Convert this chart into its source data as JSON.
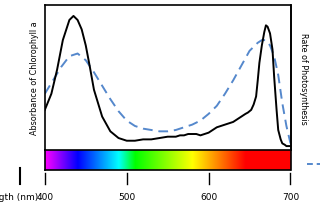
{
  "wavelength_min": 400,
  "wavelength_max": 700,
  "xlabel": "Wavelength (nm):",
  "ylabel_left": "Absorbance of Chlorophyll a",
  "ylabel_right": "Rate of Photosynthesis",
  "chlorophyll_x": [
    400,
    408,
    415,
    422,
    430,
    435,
    440,
    445,
    450,
    455,
    460,
    470,
    480,
    490,
    500,
    510,
    520,
    530,
    540,
    550,
    560,
    565,
    570,
    575,
    580,
    585,
    590,
    595,
    600,
    605,
    610,
    615,
    620,
    625,
    630,
    635,
    640,
    645,
    648,
    650,
    652,
    655,
    658,
    660,
    662,
    665,
    668,
    670,
    672,
    675,
    678,
    680,
    683,
    685,
    688,
    690,
    693,
    695,
    698,
    700
  ],
  "chlorophyll_y": [
    0.3,
    0.42,
    0.6,
    0.82,
    0.97,
    1.0,
    0.97,
    0.9,
    0.78,
    0.62,
    0.45,
    0.25,
    0.14,
    0.09,
    0.07,
    0.07,
    0.08,
    0.08,
    0.09,
    0.1,
    0.1,
    0.11,
    0.11,
    0.12,
    0.12,
    0.12,
    0.11,
    0.12,
    0.13,
    0.15,
    0.17,
    0.18,
    0.19,
    0.2,
    0.21,
    0.23,
    0.25,
    0.27,
    0.28,
    0.29,
    0.3,
    0.34,
    0.4,
    0.52,
    0.65,
    0.78,
    0.88,
    0.93,
    0.92,
    0.87,
    0.75,
    0.55,
    0.3,
    0.15,
    0.08,
    0.05,
    0.04,
    0.03,
    0.03,
    0.03
  ],
  "photosynthesis_x": [
    400,
    410,
    420,
    430,
    440,
    450,
    460,
    470,
    480,
    490,
    500,
    510,
    520,
    530,
    540,
    550,
    560,
    570,
    580,
    590,
    600,
    610,
    620,
    630,
    640,
    650,
    660,
    665,
    670,
    675,
    680,
    685,
    690,
    695,
    700
  ],
  "photosynthesis_y": [
    0.42,
    0.52,
    0.62,
    0.7,
    0.72,
    0.67,
    0.58,
    0.48,
    0.38,
    0.29,
    0.22,
    0.18,
    0.16,
    0.15,
    0.14,
    0.14,
    0.15,
    0.17,
    0.19,
    0.22,
    0.27,
    0.33,
    0.42,
    0.52,
    0.63,
    0.74,
    0.8,
    0.82,
    0.82,
    0.78,
    0.7,
    0.56,
    0.35,
    0.18,
    0.05
  ],
  "xticks": [
    400,
    500,
    600,
    700
  ],
  "line_color": "#000000",
  "dashed_color": "#5588cc"
}
